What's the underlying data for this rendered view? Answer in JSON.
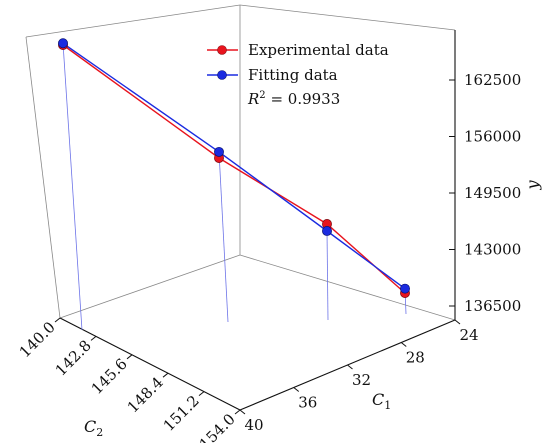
{
  "chart_data": {
    "type": "line3d",
    "title": "",
    "axes": {
      "x": {
        "label": "C",
        "label_subscript": "1",
        "ticks": [
          "24",
          "28",
          "32",
          "36",
          "40"
        ]
      },
      "y": {
        "label": "C",
        "label_subscript": "2",
        "ticks": [
          "140.0",
          "142.8",
          "145.6",
          "148.4",
          "151.2",
          "154.0"
        ]
      },
      "z": {
        "label": "y",
        "ticks": [
          "136500",
          "143000",
          "149500",
          "156000",
          "162500"
        ]
      }
    },
    "legend": {
      "placement": "top-right",
      "entries": [
        {
          "label": "Experimental data",
          "color": "#e8141e"
        },
        {
          "label": "Fitting data",
          "color": "#1a2be0"
        }
      ],
      "annotation": {
        "prefix": "R",
        "superscript": "2",
        "text": " = 0.9933"
      }
    },
    "series": [
      {
        "name": "Experimental data",
        "color": "#e8141e",
        "points": [
          {
            "C1": 40,
            "C2": 140.0,
            "y": 165600
          },
          {
            "C1": 36,
            "C2": 145.6,
            "y": 153600
          },
          {
            "C1": 32,
            "C2": 151.2,
            "y": 146700
          },
          {
            "C1": 28,
            "C2": 154.0,
            "y": 138100
          }
        ]
      },
      {
        "name": "Fitting data",
        "color": "#1a2be0",
        "points": [
          {
            "C1": 40,
            "C2": 140.0,
            "y": 165800
          },
          {
            "C1": 36,
            "C2": 145.6,
            "y": 154300
          },
          {
            "C1": 32,
            "C2": 151.2,
            "y": 145900
          },
          {
            "C1": 28,
            "C2": 154.0,
            "y": 138600
          }
        ]
      }
    ]
  }
}
